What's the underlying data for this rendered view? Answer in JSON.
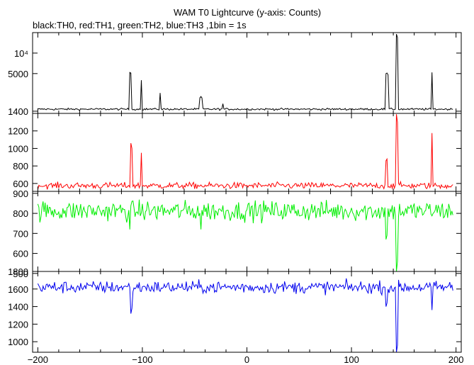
{
  "chart_data": {
    "type": "line",
    "title": "WAM T0 Lightcurve (y-axis: Counts)",
    "subtitle": "black:TH0, red:TH1, green:TH2, blue:TH3 ,1bin = 1s",
    "x_axis": {
      "range": [
        -205,
        205
      ],
      "ticks": [
        -200,
        -100,
        0,
        100,
        200
      ],
      "tick_labels": [
        "−200",
        "−100",
        "0",
        "100",
        "200"
      ]
    },
    "panels": [
      {
        "name": "TH0",
        "color": "#000000",
        "scale": "log",
        "ylim": [
          1300,
          20000
        ],
        "yticks": [
          1400,
          5000,
          10000
        ],
        "ytick_labels": [
          "1400",
          "5000",
          "10⁴"
        ],
        "baseline": 1500,
        "noise": 25,
        "spikes": [
          {
            "x": -112,
            "y": 5200
          },
          {
            "x": -111,
            "y": 5100
          },
          {
            "x": -101,
            "y": 4000
          },
          {
            "x": -83,
            "y": 2600
          },
          {
            "x": -45,
            "y": 2200
          },
          {
            "x": -44,
            "y": 2300
          },
          {
            "x": -43,
            "y": 2200
          },
          {
            "x": -23,
            "y": 1800
          },
          {
            "x": 133,
            "y": 5000
          },
          {
            "x": 134,
            "y": 5100
          },
          {
            "x": 135,
            "y": 4800
          },
          {
            "x": 143,
            "y": 19000
          },
          {
            "x": 144,
            "y": 17000
          },
          {
            "x": 177,
            "y": 5200
          }
        ]
      },
      {
        "name": "TH1",
        "color": "#ff0000",
        "scale": "linear",
        "ylim": [
          510,
          1400
        ],
        "yticks": [
          600,
          800,
          1000,
          1200
        ],
        "ytick_labels": [
          "600",
          "800",
          "1000",
          "1200"
        ],
        "baseline": 575,
        "noise": 18,
        "spikes": [
          {
            "x": -111,
            "y": 1060
          },
          {
            "x": -110,
            "y": 1000
          },
          {
            "x": -101,
            "y": 950
          },
          {
            "x": 133,
            "y": 860
          },
          {
            "x": 134,
            "y": 880
          },
          {
            "x": 143,
            "y": 1390
          },
          {
            "x": 144,
            "y": 1300
          },
          {
            "x": 177,
            "y": 1175
          }
        ]
      },
      {
        "name": "TH2",
        "color": "#00ee00",
        "scale": "linear",
        "ylim": [
          510,
          910
        ],
        "yticks": [
          500,
          600,
          700,
          800,
          900
        ],
        "ytick_labels": [
          "500",
          "600",
          "700",
          "800",
          "900"
        ],
        "baseline": 812,
        "noise": 25,
        "spikes": [
          {
            "x": -112,
            "y": 720
          },
          {
            "x": -44,
            "y": 720
          },
          {
            "x": 133,
            "y": 670
          },
          {
            "x": 134,
            "y": 690
          },
          {
            "x": 143,
            "y": 510
          },
          {
            "x": 144,
            "y": 560
          }
        ]
      },
      {
        "name": "TH3",
        "color": "#0000ee",
        "scale": "linear",
        "ylim": [
          880,
          1800
        ],
        "yticks": [
          1000,
          1200,
          1400,
          1600,
          1800
        ],
        "ytick_labels": [
          "1000",
          "1200",
          "1400",
          "1600",
          "1800"
        ],
        "baseline": 1620,
        "noise": 35,
        "spikes": [
          {
            "x": -111,
            "y": 1320
          },
          {
            "x": -110,
            "y": 1380
          },
          {
            "x": 133,
            "y": 1400
          },
          {
            "x": 134,
            "y": 1440
          },
          {
            "x": 143,
            "y": 880
          },
          {
            "x": 144,
            "y": 960
          },
          {
            "x": 177,
            "y": 1360
          }
        ]
      }
    ]
  }
}
